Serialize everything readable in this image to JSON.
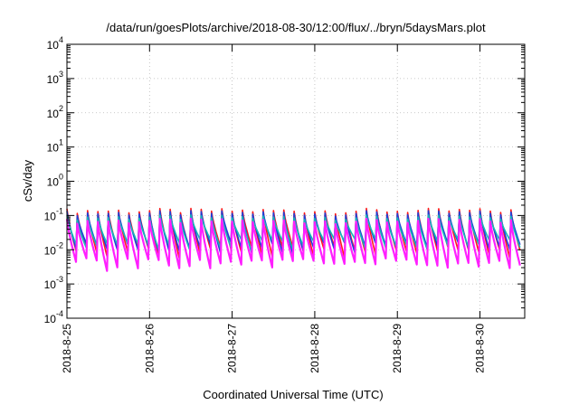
{
  "chart_data": {
    "type": "line",
    "title": "/data/run/goesPlots/archive/2018-08-30/12:00/flux/../bryn/5daysMars.plot",
    "xlabel": "Coordinated Universal Time (UTC)",
    "ylabel": "cSv/day",
    "yscale": "log",
    "ylim": [
      0.0001,
      10000
    ],
    "xlim": [
      "2018-08-25T00:00",
      "2018-08-30T13:00"
    ],
    "x_ticks": [
      "2018-8-25",
      "2018-8-26",
      "2018-8-27",
      "2018-8-28",
      "2018-8-29",
      "2018-8-30"
    ],
    "y_ticks": [
      {
        "base": "10",
        "exp": "4"
      },
      {
        "base": "10",
        "exp": "3"
      },
      {
        "base": "10",
        "exp": "2"
      },
      {
        "base": "10",
        "exp": "1"
      },
      {
        "base": "10",
        "exp": "0"
      },
      {
        "base": "10",
        "exp": "-1"
      },
      {
        "base": "10",
        "exp": "-2"
      },
      {
        "base": "10",
        "exp": "-3"
      },
      {
        "base": "10",
        "exp": "-4"
      }
    ],
    "grid": true,
    "legend": "none",
    "oscillation_cycles_per_day": 8,
    "series": [
      {
        "color": "#ff1a1a",
        "peak": 0.14,
        "trough": 0.009
      },
      {
        "color": "#1f3fd8",
        "peak": 0.12,
        "trough": 0.012
      },
      {
        "color": "#14b8b8",
        "peak": 0.09,
        "trough": 0.015
      },
      {
        "color": "#ff1fff",
        "peak": 0.07,
        "trough": 0.004
      }
    ]
  }
}
